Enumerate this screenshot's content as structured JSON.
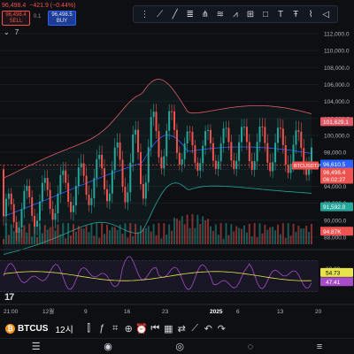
{
  "header": {
    "price": "96,498.4",
    "change": "−421.9 (−0.44%)",
    "sell_price": "96,498.4",
    "sell_label": "SELL",
    "spread": "0.1",
    "buy_price": "96,498.5",
    "buy_label": "BUY",
    "indicator_count": "7",
    "collapse_icon": "chevron-down-icon"
  },
  "toolbar": {
    "icons": [
      "menu-icon",
      "line-tool-icon",
      "ray-icon",
      "fib-icon",
      "pitchfork-icon",
      "pattern-icon",
      "elliott-icon",
      "projection-icon",
      "shape-icon",
      "text-icon",
      "anchored-text-icon",
      "brush-icon",
      "trash-icon"
    ]
  },
  "price_axis": {
    "ticks": [
      "112,000.0",
      "110,000.0",
      "108,000.0",
      "106,000.0",
      "104,000.0",
      "102,000.0",
      "100,000.0",
      "98,000.0",
      "96,000.0",
      "94,000.0",
      "92,000.0",
      "90,000.0",
      "88,000.0"
    ],
    "labels": {
      "upper_band": "101,629.1",
      "mid_band": "96,610.5",
      "last_price": "96,498.4",
      "countdown": "06:02:27",
      "symbol_tag": "BTCUSDT.P",
      "lower_band": "91,592.0",
      "volume": "94.87K"
    }
  },
  "rsi_axis": {
    "ticks": [
      "60.00",
      "40.00"
    ],
    "labels": {
      "ma": "54.73",
      "rsi": "47.41"
    }
  },
  "time_axis": {
    "ticks": [
      "21:00",
      "12월",
      "9",
      "16",
      "23",
      "2025",
      "6",
      "13",
      "20"
    ]
  },
  "bottom_bar": {
    "symbol": "BTCUSDT.P",
    "symbol_display": "BTCUS",
    "timeframe": "12시",
    "icons": [
      "candles-icon",
      "indicators-icon",
      "formula-icon",
      "add-icon",
      "alert-icon",
      "replay-icon",
      "template-icon",
      "compare-icon",
      "trend-icon",
      "undo-icon",
      "redo-icon"
    ]
  },
  "nav_bar": {
    "icons": [
      "watchlist-icon",
      "chart-icon",
      "explore-icon",
      "ideas-icon",
      "menu-icon"
    ]
  },
  "colors": {
    "up": "#26a69a",
    "down": "#ef5350",
    "band_upper": "#e05a66",
    "band_mid": "#2962ff",
    "band_lower": "#26a69a",
    "rsi": "#a64cc9",
    "rsi_ma": "#e8e34a"
  }
}
